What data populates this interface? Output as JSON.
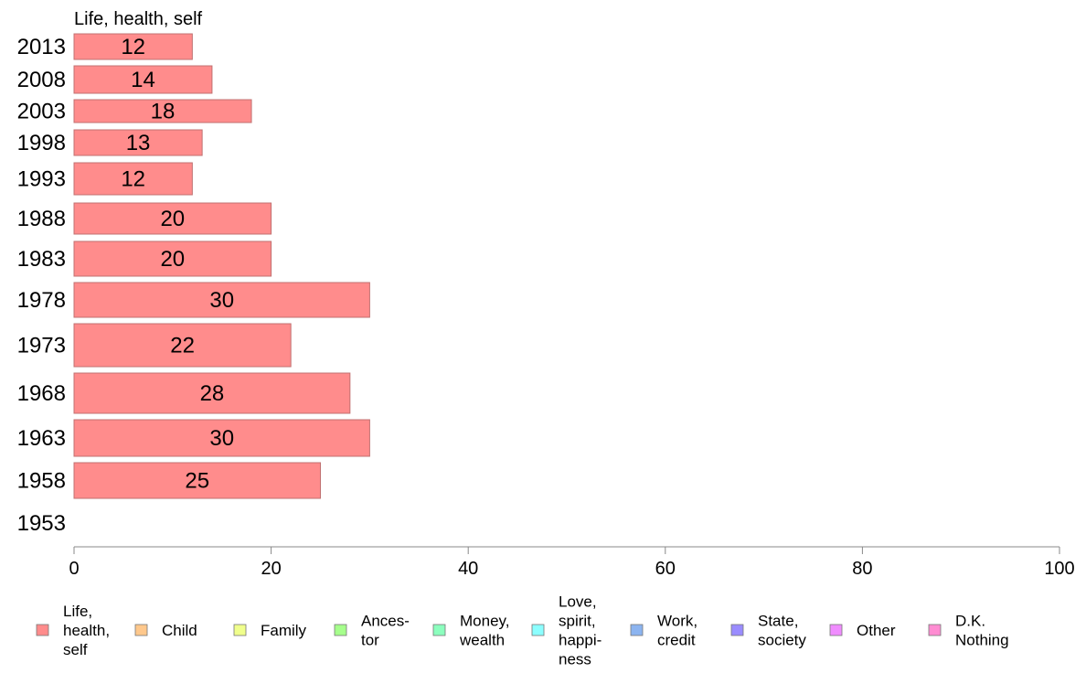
{
  "chart_data": {
    "type": "bar",
    "orientation": "horizontal",
    "title": "Life, health, self",
    "categories": [
      "2013",
      "2008",
      "2003",
      "1998",
      "1993",
      "1988",
      "1983",
      "1978",
      "1973",
      "1968",
      "1963",
      "1958",
      "1953"
    ],
    "series": [
      {
        "name": "Life, health, self",
        "values": [
          12,
          14,
          18,
          13,
          12,
          20,
          20,
          30,
          22,
          28,
          30,
          25,
          null
        ],
        "labels": [
          "12",
          "14",
          "18",
          "13",
          "12",
          "20",
          "20",
          "30",
          "22",
          "28",
          "30",
          "25",
          ""
        ]
      }
    ],
    "xlim": [
      0,
      100
    ],
    "xticks": [
      "0",
      "20",
      "40",
      "60",
      "80",
      "100"
    ],
    "grid": false,
    "legend_position": "bottom",
    "legend": [
      {
        "label": [
          "Life,",
          "health,",
          "self"
        ],
        "color": "#ff8c8c"
      },
      {
        "label": [
          "Child"
        ],
        "color": "#ffc88c"
      },
      {
        "label": [
          "Family"
        ],
        "color": "#f0ff8c"
      },
      {
        "label": [
          "Ances-",
          "tor"
        ],
        "color": "#a6ff8c"
      },
      {
        "label": [
          "Money,",
          "wealth"
        ],
        "color": "#8cffbe"
      },
      {
        "label": [
          "Love,",
          "spirit,",
          "happi-",
          "ness"
        ],
        "color": "#8cffff"
      },
      {
        "label": [
          "Work,",
          "credit"
        ],
        "color": "#8cb4f0"
      },
      {
        "label": [
          "State,",
          "society"
        ],
        "color": "#9a8cff"
      },
      {
        "label": [
          "Other"
        ],
        "color": "#f08cff"
      },
      {
        "label": [
          "D.K.",
          "Nothing"
        ],
        "color": "#ff8cd2"
      }
    ],
    "bar_color": "#ff8c8c",
    "bar_edge_color": "#c07070"
  }
}
